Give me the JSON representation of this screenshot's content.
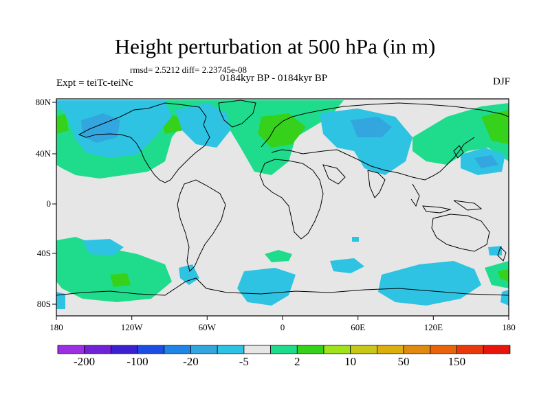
{
  "title": "Height perturbation at 500 hPa (in m)",
  "stats": "rmsd= 2.5212 diff= 2.23745e-08",
  "period": "0184kyr BP - 0184kyr BP",
  "expt": "Expt = teiTc-teiNc",
  "season": "DJF",
  "map": {
    "lat_ticks": [
      "80N",
      "40N",
      "0",
      "40S",
      "80S"
    ],
    "lon_ticks": [
      "180",
      "120W",
      "60W",
      "0",
      "60E",
      "120E",
      "180"
    ],
    "background_color": "#e6e6e6"
  },
  "colorbar": {
    "colors": [
      "#9b2fe3",
      "#6f22d6",
      "#3b1fd1",
      "#1d4ee3",
      "#1f86e8",
      "#33a6e0",
      "#2ec3e2",
      "#e6e6e6",
      "#1edc8c",
      "#36d11b",
      "#9fe41b",
      "#c8c81b",
      "#dcae10",
      "#e08a10",
      "#e8640c",
      "#e8380c",
      "#e8150c"
    ],
    "labels": [
      "-200",
      "-100",
      "-20",
      "-5",
      "2",
      "10",
      "50",
      "150"
    ]
  }
}
